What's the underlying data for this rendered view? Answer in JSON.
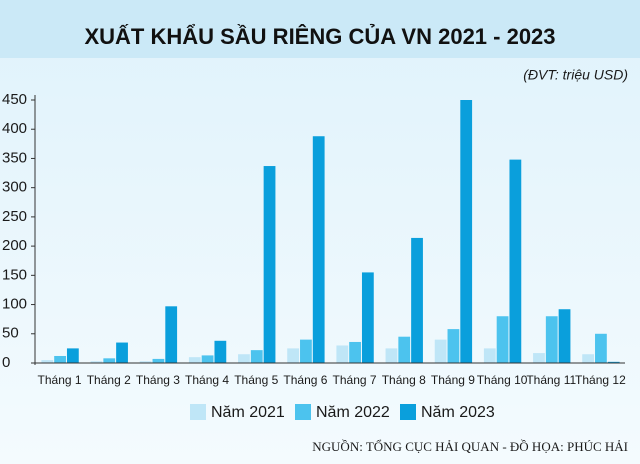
{
  "chart_data": {
    "type": "bar",
    "title": "XUẤT KHẨU SẦU RIÊNG CỦA VN 2021 - 2023",
    "subtitle": "(ĐVT: triệu USD)",
    "source": "NGUỒN: TỔNG CỤC HẢI QUAN - ĐỒ HỌA: PHÚC HẢI",
    "categories": [
      "Tháng 1",
      "Tháng 2",
      "Tháng 3",
      "Tháng 4",
      "Tháng 5",
      "Tháng 6",
      "Tháng 7",
      "Tháng 8",
      "Tháng 9",
      "Tháng 10",
      "Tháng 11",
      "Tháng 12"
    ],
    "series": [
      {
        "name": "Năm 2021",
        "color": "#bfe6f7",
        "values": [
          5,
          3,
          3,
          10,
          15,
          25,
          30,
          25,
          40,
          25,
          17,
          15
        ]
      },
      {
        "name": "Năm 2022",
        "color": "#4cc3ee",
        "values": [
          12,
          8,
          7,
          13,
          22,
          40,
          36,
          45,
          58,
          80,
          80,
          50
        ]
      },
      {
        "name": "Năm 2023",
        "color": "#0a9fdc",
        "values": [
          25,
          35,
          97,
          38,
          337,
          388,
          155,
          214,
          450,
          348,
          92,
          2
        ]
      }
    ],
    "ylim": [
      0,
      450
    ],
    "yticks": [
      0,
      50,
      100,
      150,
      200,
      250,
      300,
      350,
      400,
      450
    ]
  }
}
